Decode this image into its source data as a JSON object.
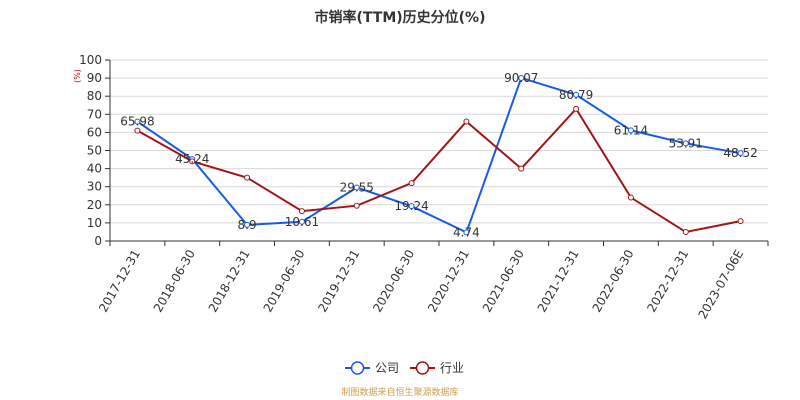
{
  "chart_data": {
    "type": "line",
    "title": "市销率(TTM)历史分位(%)",
    "ylabel": "(%)",
    "ylim": [
      0,
      100
    ],
    "yticks": [
      0,
      10,
      20,
      30,
      40,
      50,
      60,
      70,
      80,
      90,
      100
    ],
    "grid": true,
    "legend_position": "bottom",
    "categories": [
      "2017-12-31",
      "2018-06-30",
      "2018-12-31",
      "2019-06-30",
      "2019-12-31",
      "2020-06-30",
      "2020-12-31",
      "2021-06-30",
      "2021-12-31",
      "2022-06-30",
      "2022-12-31",
      "2023-07-06E"
    ],
    "series": [
      {
        "name": "公司",
        "color": "#1a5ae8",
        "values": [
          65.98,
          45.24,
          8.9,
          10.61,
          29.55,
          19.24,
          4.74,
          90.07,
          80.79,
          61.14,
          53.91,
          48.52
        ],
        "labels": [
          "65.98",
          "45.24",
          "8.9",
          "10.61",
          "29.55",
          "19.24",
          "4.74",
          "90.07",
          "80.79",
          "61.14",
          "53.91",
          "48.52"
        ]
      },
      {
        "name": "行业",
        "color": "#a31515",
        "values": [
          61,
          44,
          35,
          16.5,
          19.5,
          32,
          66,
          40,
          73,
          24,
          5,
          11
        ]
      }
    ],
    "source": "制图数据来自恒生聚源数据库"
  }
}
